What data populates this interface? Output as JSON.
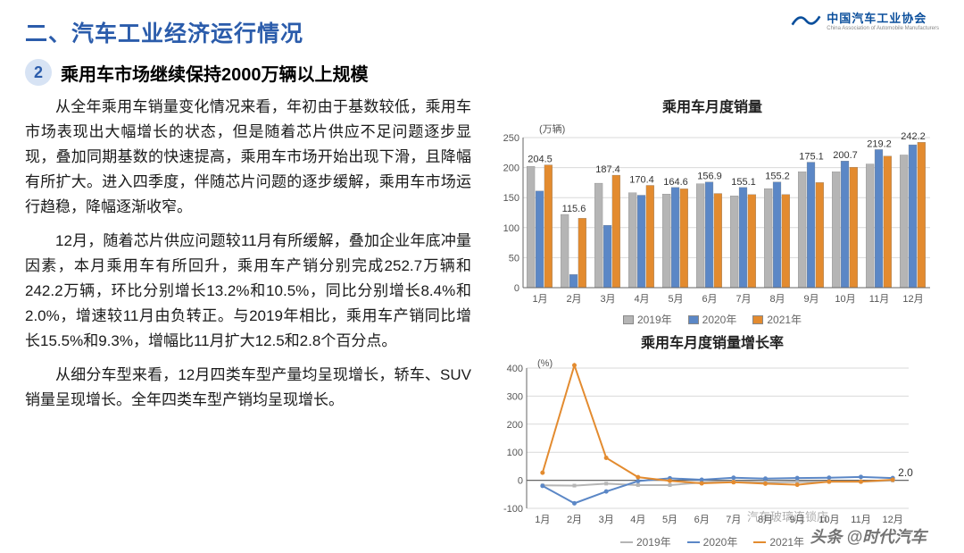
{
  "header": {
    "logo_text": "中国汽车工业协会",
    "logo_sub": "China Association of Automobile Manufacturers",
    "logo_color": "#0b4f9c"
  },
  "title": "二、汽车工业经济运行情况",
  "section": {
    "number": "2",
    "heading": "乘用车市场继续保持2000万辆以上规模"
  },
  "paragraphs": [
    "从全年乘用车销量变化情况来看，年初由于基数较低，乘用车市场表现出大幅增长的状态，但是随着芯片供应不足问题逐步显现，叠加同期基数的快速提高，乘用车市场开始出现下滑，且降幅有所扩大。进入四季度，伴随芯片问题的逐步缓解，乘用车市场运行趋稳，降幅逐渐收窄。",
    "12月，随着芯片供应问题较11月有所缓解，叠加企业年底冲量因素，本月乘用车有所回升，乘用车产销分别完成252.7万辆和242.2万辆，环比分别增长13.2%和10.5%，同比分别增长8.4%和2.0%，增速较11月由负转正。与2019年相比，乘用车产销同比增长15.5%和9.3%，增幅比11月扩大12.5和2.8个百分点。",
    "从细分车型来看，12月四类车型产量均呈现增长，轿车、SUV销量呈现增长。全年四类车型产销均呈现增长。"
  ],
  "barChart": {
    "type": "bar",
    "title": "乘用车月度销量",
    "unit_label": "(万辆)",
    "categories": [
      "1月",
      "2月",
      "3月",
      "4月",
      "5月",
      "6月",
      "7月",
      "8月",
      "9月",
      "10月",
      "11月",
      "12月"
    ],
    "series": [
      {
        "name": "2019年",
        "color": "#b5b5b5",
        "values": [
          202,
          122,
          174,
          158,
          156,
          173,
          153,
          165,
          193,
          193,
          206,
          221
        ]
      },
      {
        "name": "2020年",
        "color": "#5b87c6",
        "values": [
          161,
          22,
          104,
          154,
          167,
          176,
          167,
          176,
          209,
          211,
          230,
          238
        ]
      },
      {
        "name": "2021年",
        "color": "#e38b2f",
        "values": [
          204.5,
          115.6,
          187.4,
          170.4,
          164.6,
          156.9,
          155.1,
          155.2,
          175.1,
          200.7,
          219.2,
          242.2
        ]
      }
    ],
    "value_labels": [
      "204.5",
      "115.6",
      "187.4",
      "170.4",
      "164.6",
      "156.9",
      "155.1",
      "155.2",
      "175.1",
      "200.7",
      "219.2",
      "242.2"
    ],
    "ylim": [
      0,
      250
    ],
    "ytick_step": 50,
    "bar_group_width": 0.78,
    "background_color": "#ffffff",
    "grid_color": "#d9d9d9",
    "axis_color": "#666666",
    "label_fontsize": 12,
    "tick_fontsize": 11
  },
  "lineChart": {
    "type": "line",
    "title": "乘用车月度销量增长率",
    "unit_label": "(%)",
    "categories": [
      "1月",
      "2月",
      "3月",
      "4月",
      "5月",
      "6月",
      "7月",
      "8月",
      "9月",
      "10月",
      "11月",
      "12月"
    ],
    "series": [
      {
        "name": "2019年",
        "color": "#b5b5b5",
        "values": [
          -18,
          -19,
          -12,
          -17,
          -17,
          -8,
          -4,
          -8,
          -6,
          -5,
          -5,
          -1
        ],
        "marker": "square"
      },
      {
        "name": "2020年",
        "color": "#5b87c6",
        "values": [
          -20,
          -82,
          -40,
          -3,
          7,
          2,
          9,
          6,
          8,
          9,
          12,
          8
        ],
        "marker": "circle"
      },
      {
        "name": "2021年",
        "color": "#e38b2f",
        "values": [
          27,
          410,
          80,
          11,
          -2,
          -11,
          -7,
          -12,
          -16,
          -5,
          -5,
          2.0
        ],
        "marker": "circle"
      }
    ],
    "end_label": "2.0",
    "ylim": [
      -100,
      400
    ],
    "ytick_step": 100,
    "background_color": "#ffffff",
    "grid_color": "#d9d9d9",
    "axis_color": "#666666",
    "line_width": 2,
    "marker_size": 4,
    "tick_fontsize": 11
  },
  "watermark": {
    "main": "头条 @时代汽车",
    "sub": "汽车玻璃连锁店"
  }
}
